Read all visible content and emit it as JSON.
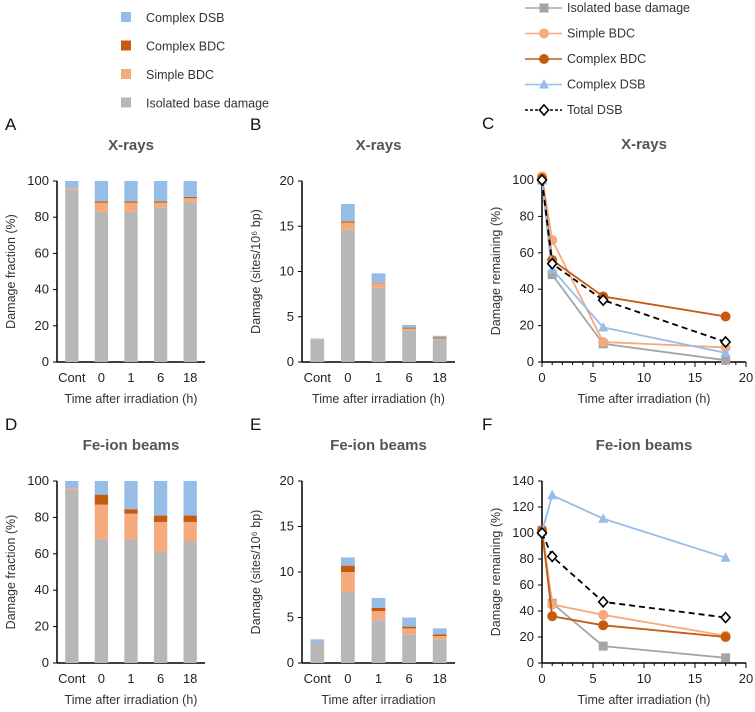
{
  "colors": {
    "isolated": "#b7b7b7",
    "simple_bdc": "#f4aa7c",
    "complex_bdc": "#c55a11",
    "complex_dsb": "#95bde8",
    "isolated_line": "#a5a5a5",
    "total_dsb": "#000000"
  },
  "bar_legend": [
    "Complex DSB",
    "Complex BDC",
    "Simple BDC",
    "Isolated base damage"
  ],
  "line_legend": [
    "Isolated base damage",
    "Simple BDC",
    "Complex BDC",
    "Complex DSB",
    "Total DSB"
  ],
  "chart_data": [
    {
      "panel": "A",
      "type": "bar",
      "stacked": true,
      "title": "X-rays",
      "xlabel": "Time after irradiation (h)",
      "ylabel": "Damage fraction (%)",
      "ylim": [
        0,
        100
      ],
      "yticks": [
        0,
        20,
        40,
        60,
        80,
        100
      ],
      "categories": [
        "Cont",
        "0",
        "1",
        "6",
        "18"
      ],
      "series": [
        {
          "name": "Isolated base damage",
          "values": [
            95,
            83,
            83,
            85.5,
            88.5
          ]
        },
        {
          "name": "Simple BDC",
          "values": [
            1,
            5,
            5,
            2.5,
            2
          ]
        },
        {
          "name": "Complex BDC",
          "values": [
            0,
            0.7,
            0.7,
            0.7,
            0.7
          ]
        },
        {
          "name": "Complex DSB",
          "values": [
            4,
            11.3,
            11.3,
            11.3,
            8.8
          ]
        }
      ]
    },
    {
      "panel": "B",
      "type": "bar",
      "stacked": true,
      "title": "X-rays",
      "xlabel": "Time after irradiation (h)",
      "ylabel": "Damage (sites/10⁶ bp)",
      "ylim": [
        0,
        20
      ],
      "yticks": [
        0,
        5,
        10,
        15,
        20
      ],
      "categories": [
        "Cont",
        "0",
        "1",
        "6",
        "18"
      ],
      "series": [
        {
          "name": "Isolated base damage",
          "values": [
            2.5,
            14.6,
            8.2,
            3.5,
            2.5
          ]
        },
        {
          "name": "Simple BDC",
          "values": [
            0.05,
            0.8,
            0.5,
            0.2,
            0.1
          ]
        },
        {
          "name": "Complex BDC",
          "values": [
            0,
            0.15,
            0.05,
            0.1,
            0.1
          ]
        },
        {
          "name": "Complex DSB",
          "values": [
            0.05,
            1.9,
            1.05,
            0.3,
            0.2
          ]
        }
      ]
    },
    {
      "panel": "C",
      "type": "line",
      "title": "X-rays",
      "xlabel": "Time after irradiation (h)",
      "ylabel": "Damage remaining (%)",
      "xlim": [
        0,
        20
      ],
      "xticks": [
        0,
        5,
        10,
        15,
        20
      ],
      "ylim": [
        0,
        100
      ],
      "yticks": [
        0,
        20,
        40,
        60,
        80,
        100
      ],
      "x": [
        0,
        1,
        6,
        18
      ],
      "series": [
        {
          "name": "Isolated base damage",
          "values": [
            100,
            48,
            10,
            1
          ]
        },
        {
          "name": "Simple BDC",
          "values": [
            102,
            67,
            11,
            8
          ]
        },
        {
          "name": "Complex BDC",
          "values": [
            101,
            56,
            36,
            25
          ]
        },
        {
          "name": "Complex DSB",
          "values": [
            100,
            51,
            19,
            5
          ]
        },
        {
          "name": "Total DSB",
          "values": [
            100,
            54,
            34,
            11
          ]
        }
      ]
    },
    {
      "panel": "D",
      "type": "bar",
      "stacked": true,
      "title": "Fe-ion beams",
      "xlabel": "Time after irradiation (h)",
      "ylabel": "Damage fraction (%)",
      "ylim": [
        0,
        100
      ],
      "yticks": [
        0,
        20,
        40,
        60,
        80,
        100
      ],
      "categories": [
        "Cont",
        "0",
        "1",
        "6",
        "18"
      ],
      "series": [
        {
          "name": "Isolated base damage",
          "values": [
            95,
            68,
            68,
            61,
            67
          ]
        },
        {
          "name": "Simple BDC",
          "values": [
            1,
            19,
            14,
            16.5,
            10.5
          ]
        },
        {
          "name": "Complex BDC",
          "values": [
            0,
            5.5,
            2.5,
            3.5,
            3.5
          ]
        },
        {
          "name": "Complex DSB",
          "values": [
            4,
            7.5,
            15.5,
            19,
            19
          ]
        }
      ]
    },
    {
      "panel": "E",
      "type": "bar",
      "stacked": true,
      "title": "Fe-ion beams",
      "xlabel": "Time after irradiation",
      "ylabel": "Damage (sites/10⁶ bp)",
      "ylim": [
        0,
        20
      ],
      "yticks": [
        0,
        5,
        10,
        15,
        20
      ],
      "categories": [
        "Cont",
        "0",
        "1",
        "6",
        "18"
      ],
      "series": [
        {
          "name": "Isolated base damage",
          "values": [
            2.3,
            7.8,
            4.7,
            3.1,
            2.6
          ]
        },
        {
          "name": "Simple BDC",
          "values": [
            0,
            2.2,
            1.0,
            0.7,
            0.35
          ]
        },
        {
          "name": "Complex BDC",
          "values": [
            0,
            0.7,
            0.35,
            0.2,
            0.2
          ]
        },
        {
          "name": "Complex DSB",
          "values": [
            0.3,
            0.9,
            1.1,
            1.0,
            0.65
          ]
        }
      ]
    },
    {
      "panel": "F",
      "type": "line",
      "title": "Fe-ion beams",
      "xlabel": "Time after irradiation (h)",
      "ylabel": "Damage remaining (%)",
      "xlim": [
        0,
        20
      ],
      "xticks": [
        0,
        5,
        10,
        15,
        20
      ],
      "ylim": [
        0,
        140
      ],
      "yticks": [
        0,
        20,
        40,
        60,
        80,
        100,
        120,
        140
      ],
      "x": [
        0,
        1,
        6,
        18
      ],
      "series": [
        {
          "name": "Isolated base damage",
          "values": [
            102,
            46,
            13,
            4
          ]
        },
        {
          "name": "Simple BDC",
          "values": [
            102,
            45,
            37,
            21
          ]
        },
        {
          "name": "Complex BDC",
          "values": [
            102,
            36,
            29,
            20
          ]
        },
        {
          "name": "Complex DSB",
          "values": [
            101,
            129,
            111,
            81
          ]
        },
        {
          "name": "Total DSB",
          "values": [
            100,
            82,
            47,
            35
          ]
        }
      ]
    }
  ]
}
